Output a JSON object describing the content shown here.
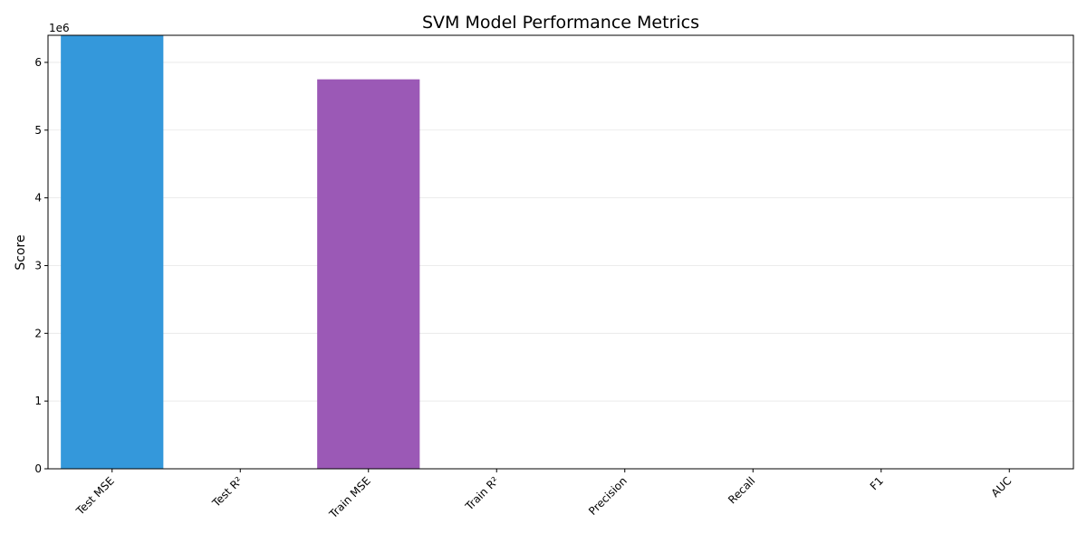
{
  "chart_data": {
    "type": "bar",
    "title": "SVM Model Performance Metrics",
    "xlabel": "",
    "ylabel": "Score",
    "y_offset_label": "1e6",
    "y_scale": 1000000,
    "ylim": [
      0,
      6400000
    ],
    "yticks": [
      0,
      1000000,
      2000000,
      3000000,
      4000000,
      5000000,
      6000000
    ],
    "ytick_labels": [
      "0",
      "1",
      "2",
      "3",
      "4",
      "5",
      "6"
    ],
    "grid": "horizontal",
    "categories": [
      "Test MSE",
      "Test R²",
      "Train MSE",
      "Train R²",
      "Precision",
      "Recall",
      "F1",
      "AUC"
    ],
    "values": [
      6400000,
      0,
      5750000,
      0,
      0,
      0,
      0,
      0
    ],
    "colors": [
      "#3498db",
      "#2ecc71",
      "#9b59b6",
      "#e67e22",
      "#e74c3c",
      "#1abc9c",
      "#f1c40f",
      "#34495e"
    ]
  }
}
